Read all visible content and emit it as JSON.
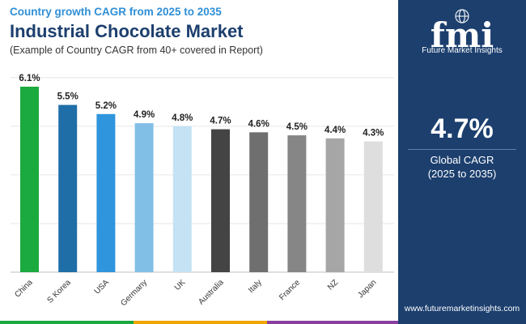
{
  "header": {
    "subtitle": "Country growth CAGR from 2025 to 2035",
    "title": "Industrial Chocolate Market",
    "note": "(Example of Country CAGR from 40+ covered in Report)"
  },
  "chart_data": {
    "type": "bar",
    "title": "Industrial Chocolate Market",
    "subtitle": "Country growth CAGR from 2025 to 2035",
    "xlabel": "",
    "ylabel": "",
    "ylim": [
      0,
      6.5
    ],
    "grid": true,
    "categories": [
      "China",
      "S Korea",
      "USA",
      "Germany",
      "UK",
      "Australia",
      "Italy",
      "France",
      "NZ",
      "Japan"
    ],
    "values": [
      6.1,
      5.5,
      5.2,
      4.9,
      4.8,
      4.7,
      4.6,
      4.5,
      4.4,
      4.3
    ],
    "value_labels": [
      "6.1%",
      "5.5%",
      "5.2%",
      "4.9%",
      "4.8%",
      "4.7%",
      "4.6%",
      "4.5%",
      "4.4%",
      "4.3%"
    ],
    "colors": [
      "#1aaa3f",
      "#1f6ea8",
      "#2f95dc",
      "#82bfe6",
      "#c4e2f4",
      "#444444",
      "#6f6f6f",
      "#868686",
      "#a6a6a6",
      "#dedede"
    ]
  },
  "kpi": {
    "value": "4.7%",
    "label": "Global CAGR",
    "period": "(2025 to 2035)"
  },
  "brand": {
    "logo_text": "fmi",
    "caption": "Future Market Insights",
    "website": "www.futuremarketinsights.com"
  },
  "theme": {
    "panel": "#1c3f6e",
    "footer_colors": [
      "#1aaa3f",
      "#f0a500",
      "#8a3ea0"
    ]
  }
}
